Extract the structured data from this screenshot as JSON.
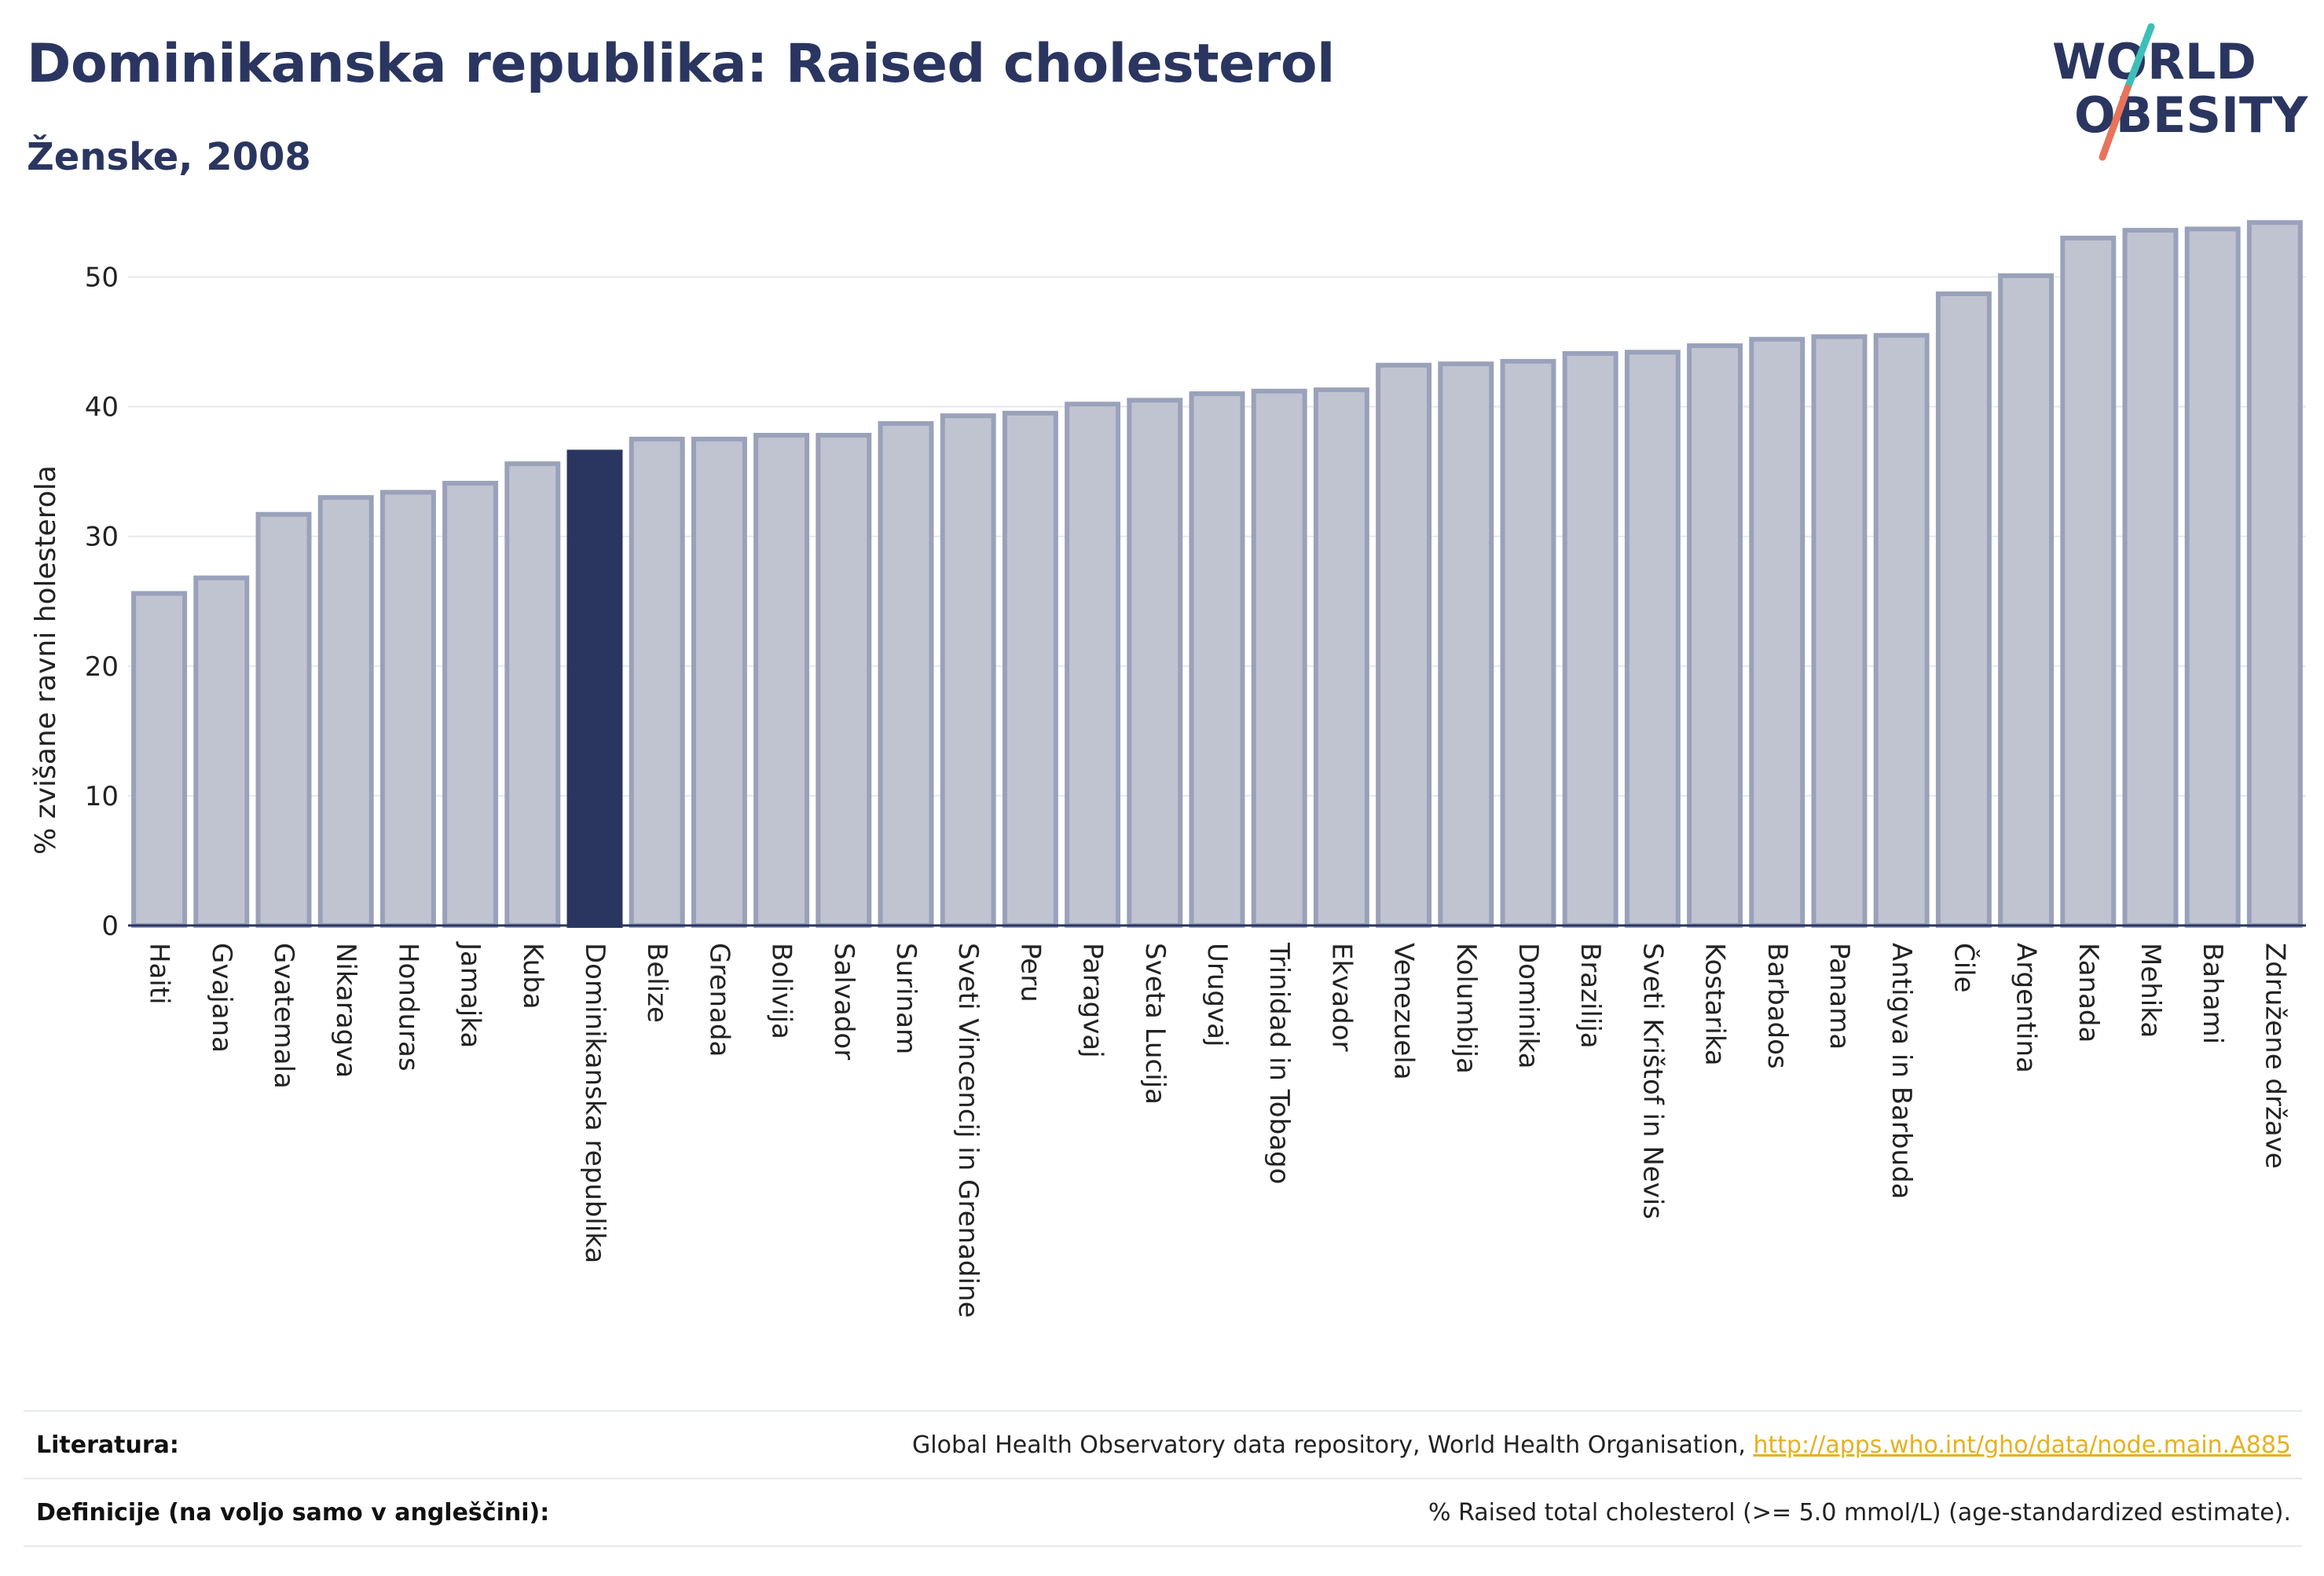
{
  "header": {
    "title": "Dominikanska republika: Raised cholesterol",
    "subtitle": "Ženske, 2008"
  },
  "logo": {
    "line1": "WORLD",
    "line2": "OBESITY",
    "colors": {
      "text": "#2a3660",
      "slash_top": "#3dbfb8",
      "slash_bottom": "#e8735a"
    }
  },
  "colors": {
    "bar_default": "#c0c4d1",
    "bar_default_border": "#9aa1ba",
    "bar_highlight": "#2a3660",
    "axis_text": "#222222",
    "grid": "#e6e8ee",
    "link": "#e8b021"
  },
  "chart_data": {
    "type": "bar",
    "title": "",
    "xlabel": "",
    "ylabel": "% zvišane ravni holesterola",
    "ylim": [
      0,
      55
    ],
    "yticks": [
      0,
      10,
      20,
      30,
      40,
      50
    ],
    "grid": true,
    "highlight": "Dominikanska republika",
    "categories": [
      "Haiti",
      "Gvajana",
      "Gvatemala",
      "Nikaragva",
      "Honduras",
      "Jamajka",
      "Kuba",
      "Dominikanska republika",
      "Belize",
      "Grenada",
      "Bolivija",
      "Salvador",
      "Surinam",
      "Sveti Vincencij in Grenadine",
      "Peru",
      "Paragvaj",
      "Sveta Lucija",
      "Urugvaj",
      "Trinidad in Tobago",
      "Ekvador",
      "Venezuela",
      "Kolumbija",
      "Dominika",
      "Brazilija",
      "Sveti Krištof in Nevis",
      "Kostarika",
      "Barbados",
      "Panama",
      "Antigva in Barbuda",
      "Čile",
      "Argentina",
      "Kanada",
      "Mehika",
      "Bahami",
      "Združene države"
    ],
    "values": [
      25.6,
      26.8,
      31.7,
      33.0,
      33.4,
      34.1,
      35.6,
      36.5,
      37.5,
      37.5,
      37.8,
      37.8,
      38.7,
      39.3,
      39.5,
      40.2,
      40.5,
      41.0,
      41.2,
      41.3,
      43.2,
      43.3,
      43.5,
      44.1,
      44.2,
      44.7,
      45.2,
      45.4,
      45.5,
      48.7,
      50.1,
      53.0,
      53.6,
      53.7,
      54.2
    ]
  },
  "references": [
    {
      "label": "Literatura:",
      "text": "Global Health Observatory data repository, World Health Organisation, ",
      "link": "http://apps.who.int/gho/data/node.main.A885"
    },
    {
      "label": "Definicije (na voljo samo v angleščini):",
      "text": "% Raised total cholesterol (>= 5.0 mmol/L) (age-standardized estimate)."
    }
  ]
}
